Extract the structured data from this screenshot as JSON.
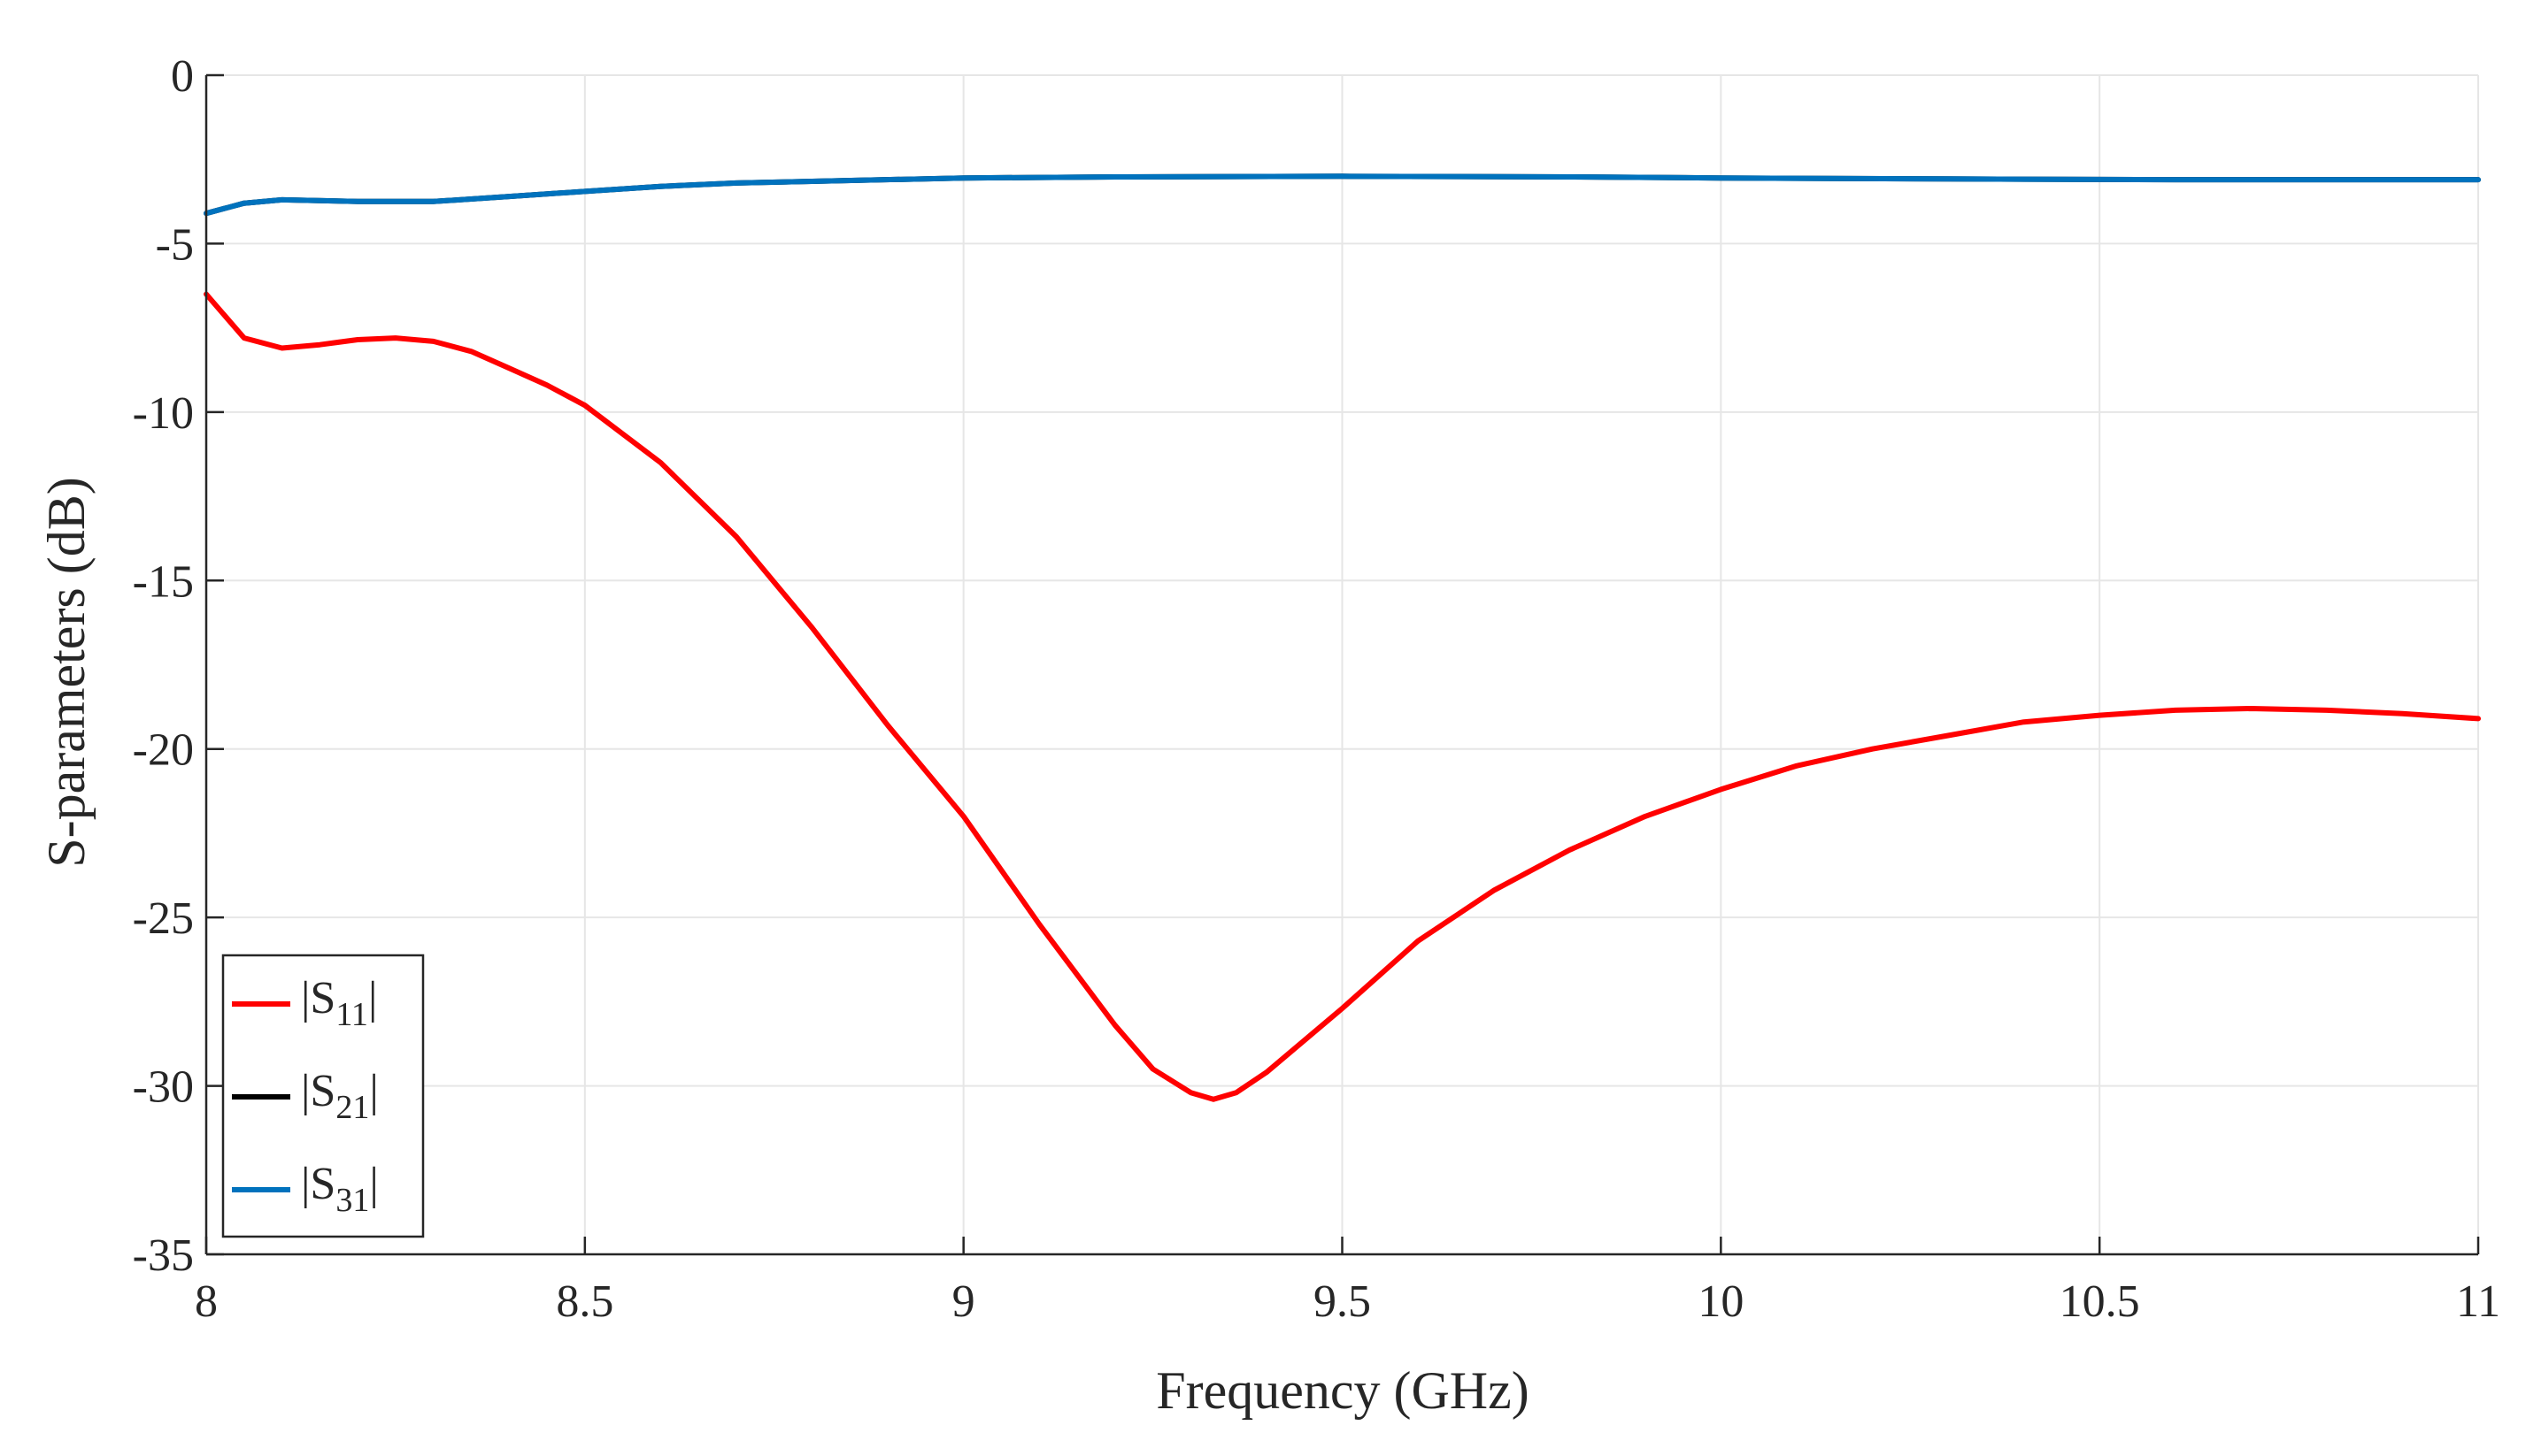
{
  "chart_data": {
    "type": "line",
    "title": "",
    "xlabel": "Frequency (GHz)",
    "ylabel": "S-parameters (dB)",
    "xlim": [
      8,
      11
    ],
    "ylim": [
      -35,
      0
    ],
    "xticks": [
      8,
      8.5,
      9,
      9.5,
      10,
      10.5,
      11
    ],
    "xtick_labels": [
      "8",
      "8.5",
      "9",
      "9.5",
      "10",
      "10.5",
      "11"
    ],
    "yticks": [
      0,
      -5,
      -10,
      -15,
      -20,
      -25,
      -30,
      -35
    ],
    "ytick_labels": [
      "0",
      "-5",
      "-10",
      "-15",
      "-20",
      "-25",
      "-30",
      "-35"
    ],
    "grid": true,
    "legend_position": "bottom-left",
    "series": [
      {
        "name": "|S11|",
        "label_main": "|S",
        "label_sub": "11",
        "label_end": "|",
        "color": "#ff0000",
        "x": [
          8.0,
          8.05,
          8.1,
          8.15,
          8.2,
          8.25,
          8.3,
          8.35,
          8.4,
          8.45,
          8.5,
          8.6,
          8.7,
          8.8,
          8.9,
          9.0,
          9.1,
          9.2,
          9.25,
          9.3,
          9.33,
          9.36,
          9.4,
          9.5,
          9.6,
          9.7,
          9.8,
          9.9,
          10.0,
          10.1,
          10.2,
          10.3,
          10.4,
          10.5,
          10.6,
          10.7,
          10.8,
          10.9,
          11.0
        ],
        "y": [
          -6.5,
          -7.8,
          -8.1,
          -8.0,
          -7.85,
          -7.8,
          -7.9,
          -8.2,
          -8.7,
          -9.2,
          -9.8,
          -11.5,
          -13.7,
          -16.4,
          -19.3,
          -22.0,
          -25.2,
          -28.2,
          -29.5,
          -30.2,
          -30.4,
          -30.2,
          -29.6,
          -27.7,
          -25.7,
          -24.2,
          -23.0,
          -22.0,
          -21.2,
          -20.5,
          -20.0,
          -19.6,
          -19.2,
          -19.0,
          -18.85,
          -18.8,
          -18.85,
          -18.95,
          -19.1
        ]
      },
      {
        "name": "|S21|",
        "label_main": "|S",
        "label_sub": "21",
        "label_end": "|",
        "color": "#000000",
        "x": [
          8.0,
          8.05,
          8.1,
          8.2,
          8.3,
          8.4,
          8.5,
          8.6,
          8.7,
          8.8,
          9.0,
          9.2,
          9.5,
          9.8,
          10.0,
          10.3,
          10.6,
          11.0
        ],
        "y": [
          -4.1,
          -3.8,
          -3.7,
          -3.75,
          -3.75,
          -3.6,
          -3.45,
          -3.3,
          -3.2,
          -3.15,
          -3.05,
          -3.02,
          -3.0,
          -3.02,
          -3.05,
          -3.08,
          -3.1,
          -3.1
        ]
      },
      {
        "name": "|S31|",
        "label_main": "|S",
        "label_sub": "31",
        "label_end": "|",
        "color": "#0072bd",
        "x": [
          8.0,
          8.05,
          8.1,
          8.2,
          8.3,
          8.4,
          8.5,
          8.6,
          8.7,
          8.8,
          9.0,
          9.2,
          9.5,
          9.8,
          10.0,
          10.3,
          10.6,
          11.0
        ],
        "y": [
          -4.1,
          -3.8,
          -3.7,
          -3.75,
          -3.75,
          -3.6,
          -3.45,
          -3.3,
          -3.2,
          -3.15,
          -3.05,
          -3.02,
          -3.0,
          -3.02,
          -3.05,
          -3.08,
          -3.1,
          -3.1
        ]
      }
    ]
  }
}
